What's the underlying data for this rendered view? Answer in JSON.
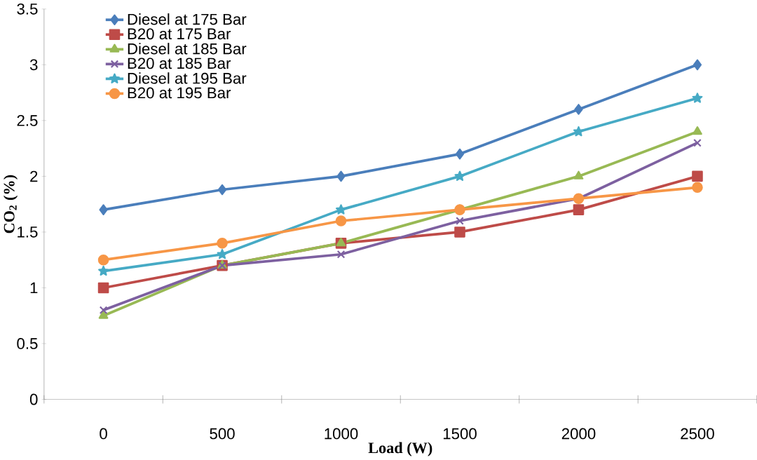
{
  "chart_data": {
    "type": "line",
    "xlabel": "Load (W)",
    "ylabel": "CO$_{2}$ (%)",
    "categories": [
      "0",
      "500",
      "1000",
      "1500",
      "2000",
      "2500"
    ],
    "ylim": [
      0,
      3.5
    ],
    "yticks": [
      0,
      0.5,
      1,
      1.5,
      2,
      2.5,
      3,
      3.5
    ],
    "grid": false,
    "legend": "top left",
    "line_style": "solid",
    "series": [
      {
        "name": "Diesel at 175 Bar",
        "color": "#4a7ebb",
        "marker": "diamond",
        "values": [
          1.7,
          1.88,
          2.0,
          2.2,
          2.6,
          3.0
        ]
      },
      {
        "name": "B20 at 175 Bar",
        "color": "#be4b48",
        "marker": "square",
        "values": [
          1.0,
          1.2,
          1.4,
          1.5,
          1.7,
          2.0
        ]
      },
      {
        "name": "Diesel at 185 Bar",
        "color": "#98b954",
        "marker": "triangle",
        "values": [
          0.75,
          1.2,
          1.4,
          1.7,
          2.0,
          2.4
        ]
      },
      {
        "name": "B20 at 185 Bar",
        "color": "#7d60a0",
        "marker": "cross",
        "values": [
          0.8,
          1.2,
          1.3,
          1.6,
          1.8,
          2.3
        ]
      },
      {
        "name": "Diesel at 195 Bar",
        "color": "#46aac5",
        "marker": "star",
        "values": [
          1.15,
          1.3,
          1.7,
          2.0,
          2.4,
          2.7
        ]
      },
      {
        "name": "B20 at 195 Bar",
        "color": "#f79646",
        "marker": "circle",
        "values": [
          1.25,
          1.4,
          1.6,
          1.7,
          1.8,
          1.9
        ]
      }
    ]
  }
}
